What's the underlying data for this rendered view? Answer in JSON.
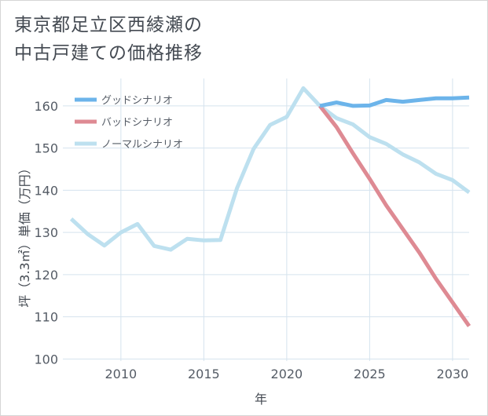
{
  "title_lines": [
    "東京都足立区西綾瀬の",
    "中古戸建ての価格推移"
  ],
  "chart_data": {
    "type": "line",
    "title": "東京都足立区西綾瀬の中古戸建ての価格推移",
    "xlabel": "年",
    "ylabel": "坪（3.3㎡）単価（万円）",
    "xlim": [
      2006.5,
      2031
    ],
    "ylim": [
      99.5,
      166.5
    ],
    "xticks": [
      2010,
      2015,
      2020,
      2025,
      2030
    ],
    "yticks": [
      100,
      110,
      120,
      130,
      140,
      150,
      160
    ],
    "grid": true,
    "legend_position": "top-left",
    "series": [
      {
        "name": "グッドシナリオ",
        "color": "#6cb4ea",
        "x": [
          2022,
          2023,
          2024,
          2025,
          2026,
          2027,
          2028,
          2029,
          2030,
          2031
        ],
        "y": [
          160.0,
          160.8,
          160.0,
          160.1,
          161.4,
          161.0,
          161.4,
          161.8,
          161.8,
          162.0
        ]
      },
      {
        "name": "バッドシナリオ",
        "color": "#de8a93",
        "x": [
          2022,
          2023,
          2024,
          2025,
          2026,
          2027,
          2028,
          2029,
          2030,
          2031
        ],
        "y": [
          160.0,
          155.0,
          148.7,
          142.7,
          136.4,
          130.8,
          125.2,
          119.0,
          113.4,
          107.8
        ]
      },
      {
        "name": "ノーマルシナリオ",
        "color": "#bde0ef",
        "x": [
          2007,
          2008,
          2009,
          2010,
          2011,
          2012,
          2013,
          2014,
          2015,
          2016,
          2017,
          2018,
          2019,
          2020,
          2021,
          2022,
          2023,
          2024,
          2025,
          2026,
          2027,
          2028,
          2029,
          2030,
          2031
        ],
        "y": [
          133.2,
          129.6,
          126.9,
          130.0,
          132.0,
          126.8,
          125.9,
          128.5,
          128.1,
          128.2,
          140.5,
          149.8,
          155.5,
          157.4,
          164.2,
          160.0,
          157.1,
          155.6,
          152.6,
          151.0,
          148.5,
          146.6,
          143.9,
          142.4,
          139.5
        ]
      }
    ]
  }
}
